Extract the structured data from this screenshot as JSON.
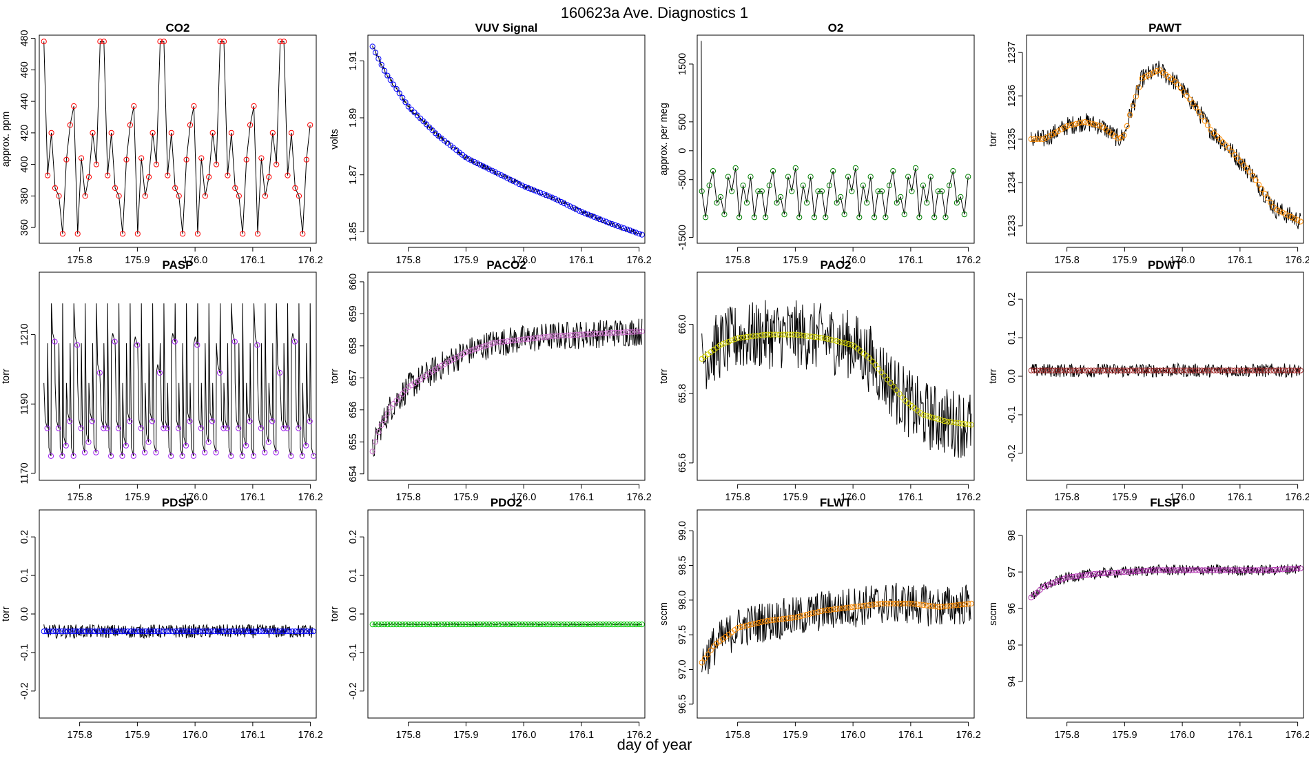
{
  "figure": {
    "title": "160623a   Ave. Diagnostics 1",
    "xlabel": "day of year"
  },
  "chart_data": [
    {
      "type": "line",
      "title": "CO2",
      "ylabel": "approx. ppm",
      "xlim": [
        175.73,
        176.21
      ],
      "ylim": [
        350,
        482
      ],
      "yticks": [
        360,
        380,
        400,
        420,
        440,
        460,
        480
      ],
      "xticks": [
        175.8,
        175.9,
        176.0,
        176.1,
        176.2
      ],
      "color": "#ff0000",
      "marker": "circle",
      "noise": 0,
      "kind": "cycle",
      "cycle_values": [
        478,
        393,
        420,
        385,
        380,
        356,
        403,
        425,
        437,
        356,
        404,
        380,
        392,
        420,
        400,
        478
      ],
      "sample_interval": 0.0065
    },
    {
      "type": "line",
      "title": "VUV Signal",
      "ylabel": "volts",
      "xlim": [
        175.73,
        176.21
      ],
      "ylim": [
        1.846,
        1.919
      ],
      "yticks": [
        1.85,
        1.87,
        1.89,
        1.91
      ],
      "xticks": [
        175.8,
        175.9,
        176.0,
        176.1,
        176.2
      ],
      "color": "#0000ff",
      "marker": "circle",
      "noise": 0.001,
      "kind": "curve",
      "x": [
        175.738,
        175.76,
        175.8,
        175.85,
        175.9,
        175.95,
        176.0,
        176.05,
        176.1,
        176.15,
        176.205
      ],
      "y": [
        1.915,
        1.906,
        1.894,
        1.884,
        1.876,
        1.871,
        1.866,
        1.862,
        1.857,
        1.853,
        1.849
      ]
    },
    {
      "type": "line",
      "title": "O2",
      "ylabel": "approx. per meg",
      "xlim": [
        175.73,
        176.21
      ],
      "ylim": [
        -1600,
        2000
      ],
      "yticks": [
        -1500,
        -500,
        0,
        500,
        1500
      ],
      "xticks": [
        175.8,
        175.9,
        176.0,
        176.1,
        176.2
      ],
      "color": "#008000",
      "marker": "circle",
      "noise": 0,
      "kind": "cycle",
      "cycle_values": [
        -700,
        -1150,
        -600,
        -350,
        -900,
        -800,
        -1100,
        -450,
        -700,
        -300,
        -1150,
        -600,
        -900,
        -450,
        -1150,
        -700
      ],
      "sample_interval": 0.0065,
      "spike": {
        "x": 175.737,
        "y": 1900
      }
    },
    {
      "type": "line",
      "title": "PAWT",
      "ylabel": "torr",
      "xlim": [
        175.73,
        176.21
      ],
      "ylim": [
        1232.6,
        1237.4
      ],
      "yticks": [
        1233,
        1234,
        1235,
        1236,
        1237
      ],
      "xticks": [
        175.8,
        175.9,
        176.0,
        176.1,
        176.2
      ],
      "color": "#ff8c00",
      "marker": "circle",
      "noise": 0.22,
      "kind": "curve",
      "x": [
        175.738,
        175.76,
        175.8,
        175.83,
        175.86,
        175.89,
        175.9,
        175.91,
        175.93,
        175.96,
        175.99,
        176.02,
        176.05,
        176.08,
        176.12,
        176.16,
        176.205
      ],
      "y": [
        1235.0,
        1235.0,
        1235.3,
        1235.4,
        1235.3,
        1235.0,
        1235.1,
        1235.6,
        1236.4,
        1236.6,
        1236.3,
        1235.8,
        1235.2,
        1234.8,
        1234.2,
        1233.4,
        1233.1
      ]
    },
    {
      "type": "line",
      "title": "PASP",
      "ylabel": "torr",
      "xlim": [
        175.73,
        176.21
      ],
      "ylim": [
        1168,
        1228
      ],
      "yticks": [
        1170,
        1190,
        1210
      ],
      "xticks": [
        175.8,
        175.9,
        176.0,
        176.1,
        176.2
      ],
      "color": "#a020f0",
      "marker": "circle",
      "noise": 0,
      "kind": "sawtooth",
      "cycle_values": [
        1183,
        1175,
        1208,
        1183,
        1175,
        1178,
        1185,
        1175,
        1207,
        1183,
        1176,
        1179,
        1185,
        1176,
        1199,
        1183
      ],
      "sample_interval": 0.0065
    },
    {
      "type": "line",
      "title": "PACO2",
      "ylabel": "torr",
      "xlim": [
        175.73,
        176.21
      ],
      "ylim": [
        653.8,
        660.3
      ],
      "yticks": [
        654,
        655,
        656,
        657,
        658,
        659,
        660
      ],
      "xticks": [
        175.8,
        175.9,
        176.0,
        176.1,
        176.2
      ],
      "color": "#d070d0",
      "marker": "circle",
      "noise": 0.45,
      "kind": "curve",
      "x": [
        175.738,
        175.75,
        175.77,
        175.8,
        175.85,
        175.9,
        175.95,
        176.0,
        176.05,
        176.1,
        176.15,
        176.205
      ],
      "y": [
        654.7,
        655.4,
        656.1,
        656.7,
        657.3,
        657.8,
        658.1,
        658.2,
        658.3,
        658.35,
        658.4,
        658.45
      ]
    },
    {
      "type": "line",
      "title": "PAO2",
      "ylabel": "torr",
      "xlim": [
        175.73,
        176.21
      ],
      "ylim": [
        65.55,
        66.15
      ],
      "yticks": [
        65.6,
        65.8,
        66.0
      ],
      "xticks": [
        175.8,
        175.9,
        176.0,
        176.1,
        176.2
      ],
      "color": "#d4d400",
      "marker": "circle",
      "noise": 0.1,
      "kind": "curve",
      "x": [
        175.738,
        175.77,
        175.8,
        175.85,
        175.9,
        175.95,
        176.0,
        176.03,
        176.06,
        176.09,
        176.12,
        176.16,
        176.205
      ],
      "y": [
        65.9,
        65.94,
        65.96,
        65.97,
        65.97,
        65.96,
        65.94,
        65.9,
        65.84,
        65.78,
        65.74,
        65.72,
        65.71
      ]
    },
    {
      "type": "line",
      "title": "PDWT",
      "ylabel": "torr",
      "xlim": [
        175.73,
        176.21
      ],
      "ylim": [
        -0.27,
        0.27
      ],
      "yticks": [
        -0.2,
        -0.1,
        0.0,
        0.1,
        0.2
      ],
      "xticks": [
        175.8,
        175.9,
        176.0,
        176.1,
        176.2
      ],
      "color": "#a52a2a",
      "marker": "circle",
      "noise": 0.018,
      "kind": "curve",
      "x": [
        175.738,
        176.205
      ],
      "y": [
        0.015,
        0.015
      ]
    },
    {
      "type": "line",
      "title": "PDSP",
      "ylabel": "torr",
      "xlim": [
        175.73,
        176.21
      ],
      "ylim": [
        -0.27,
        0.27
      ],
      "yticks": [
        -0.2,
        -0.1,
        0.0,
        0.1,
        0.2
      ],
      "xticks": [
        175.8,
        175.9,
        176.0,
        176.1,
        176.2
      ],
      "color": "#0000ff",
      "marker": "circle",
      "noise": 0.018,
      "kind": "curve",
      "x": [
        175.738,
        176.205
      ],
      "y": [
        -0.045,
        -0.045
      ]
    },
    {
      "type": "line",
      "title": "PDO2",
      "ylabel": "torr",
      "xlim": [
        175.73,
        176.21
      ],
      "ylim": [
        -0.27,
        0.27
      ],
      "yticks": [
        -0.2,
        -0.1,
        0.0,
        0.1,
        0.2
      ],
      "xticks": [
        175.8,
        175.9,
        176.0,
        176.1,
        176.2
      ],
      "color": "#00cc00",
      "marker": "circle",
      "noise": 0.002,
      "kind": "curve",
      "x": [
        175.738,
        176.205
      ],
      "y": [
        -0.027,
        -0.027
      ]
    },
    {
      "type": "line",
      "title": "FLWT",
      "ylabel": "sccm",
      "xlim": [
        175.73,
        176.21
      ],
      "ylim": [
        96.3,
        99.3
      ],
      "yticks": [
        96.5,
        97.0,
        97.5,
        98.0,
        98.5,
        99.0
      ],
      "xticks": [
        175.8,
        175.9,
        176.0,
        176.1,
        176.2
      ],
      "color": "#ff8c00",
      "marker": "circle",
      "noise": 0.3,
      "kind": "curve",
      "x": [
        175.738,
        175.76,
        175.8,
        175.85,
        175.9,
        175.95,
        176.0,
        176.05,
        176.1,
        176.15,
        176.205
      ],
      "y": [
        97.1,
        97.35,
        97.6,
        97.7,
        97.75,
        97.85,
        97.9,
        97.95,
        97.95,
        97.9,
        97.95
      ]
    },
    {
      "type": "line",
      "title": "FLSP",
      "ylabel": "sccm",
      "xlim": [
        175.73,
        176.21
      ],
      "ylim": [
        93.0,
        98.7
      ],
      "yticks": [
        94,
        95,
        96,
        97,
        98
      ],
      "xticks": [
        175.8,
        175.9,
        176.0,
        176.1,
        176.2
      ],
      "color": "#b030b0",
      "marker": "circle",
      "noise": 0.15,
      "kind": "curve",
      "x": [
        175.738,
        175.76,
        175.8,
        175.85,
        175.9,
        175.95,
        176.0,
        176.05,
        176.1,
        176.15,
        176.205
      ],
      "y": [
        96.3,
        96.6,
        96.85,
        96.95,
        97.0,
        97.05,
        97.05,
        97.05,
        97.05,
        97.05,
        97.1
      ]
    }
  ]
}
